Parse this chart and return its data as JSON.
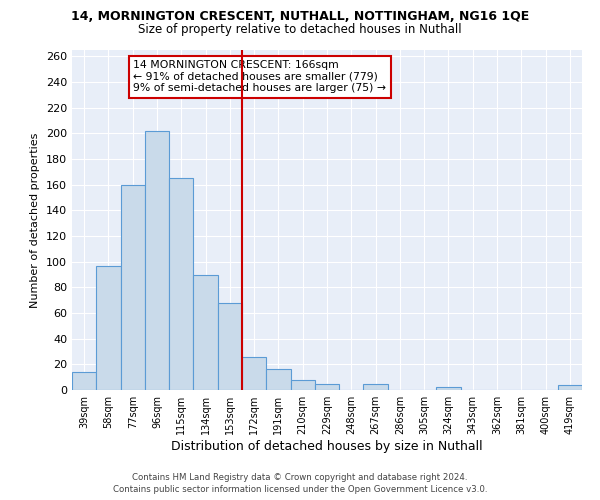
{
  "title": "14, MORNINGTON CRESCENT, NUTHALL, NOTTINGHAM, NG16 1QE",
  "subtitle": "Size of property relative to detached houses in Nuthall",
  "xlabel": "Distribution of detached houses by size in Nuthall",
  "ylabel": "Number of detached properties",
  "bin_labels": [
    "39sqm",
    "58sqm",
    "77sqm",
    "96sqm",
    "115sqm",
    "134sqm",
    "153sqm",
    "172sqm",
    "191sqm",
    "210sqm",
    "229sqm",
    "248sqm",
    "267sqm",
    "286sqm",
    "305sqm",
    "324sqm",
    "343sqm",
    "362sqm",
    "381sqm",
    "400sqm",
    "419sqm"
  ],
  "bar_heights": [
    14,
    97,
    160,
    202,
    165,
    90,
    68,
    26,
    16,
    8,
    5,
    0,
    5,
    0,
    0,
    2,
    0,
    0,
    0,
    0,
    4
  ],
  "bar_color": "#c9daea",
  "bar_edge_color": "#5b9bd5",
  "vline_pos": 6.5,
  "vline_color": "#cc0000",
  "annotation_text": "14 MORNINGTON CRESCENT: 166sqm\n← 91% of detached houses are smaller (779)\n9% of semi-detached houses are larger (75) →",
  "annotation_box_color": "#ffffff",
  "annotation_box_edge": "#cc0000",
  "ylim": [
    0,
    265
  ],
  "yticks": [
    0,
    20,
    40,
    60,
    80,
    100,
    120,
    140,
    160,
    180,
    200,
    220,
    240,
    260
  ],
  "footer1": "Contains HM Land Registry data © Crown copyright and database right 2024.",
  "footer2": "Contains public sector information licensed under the Open Government Licence v3.0.",
  "fig_bg_color": "#ffffff",
  "plot_bg_color": "#e8eef8",
  "grid_color": "#ffffff"
}
